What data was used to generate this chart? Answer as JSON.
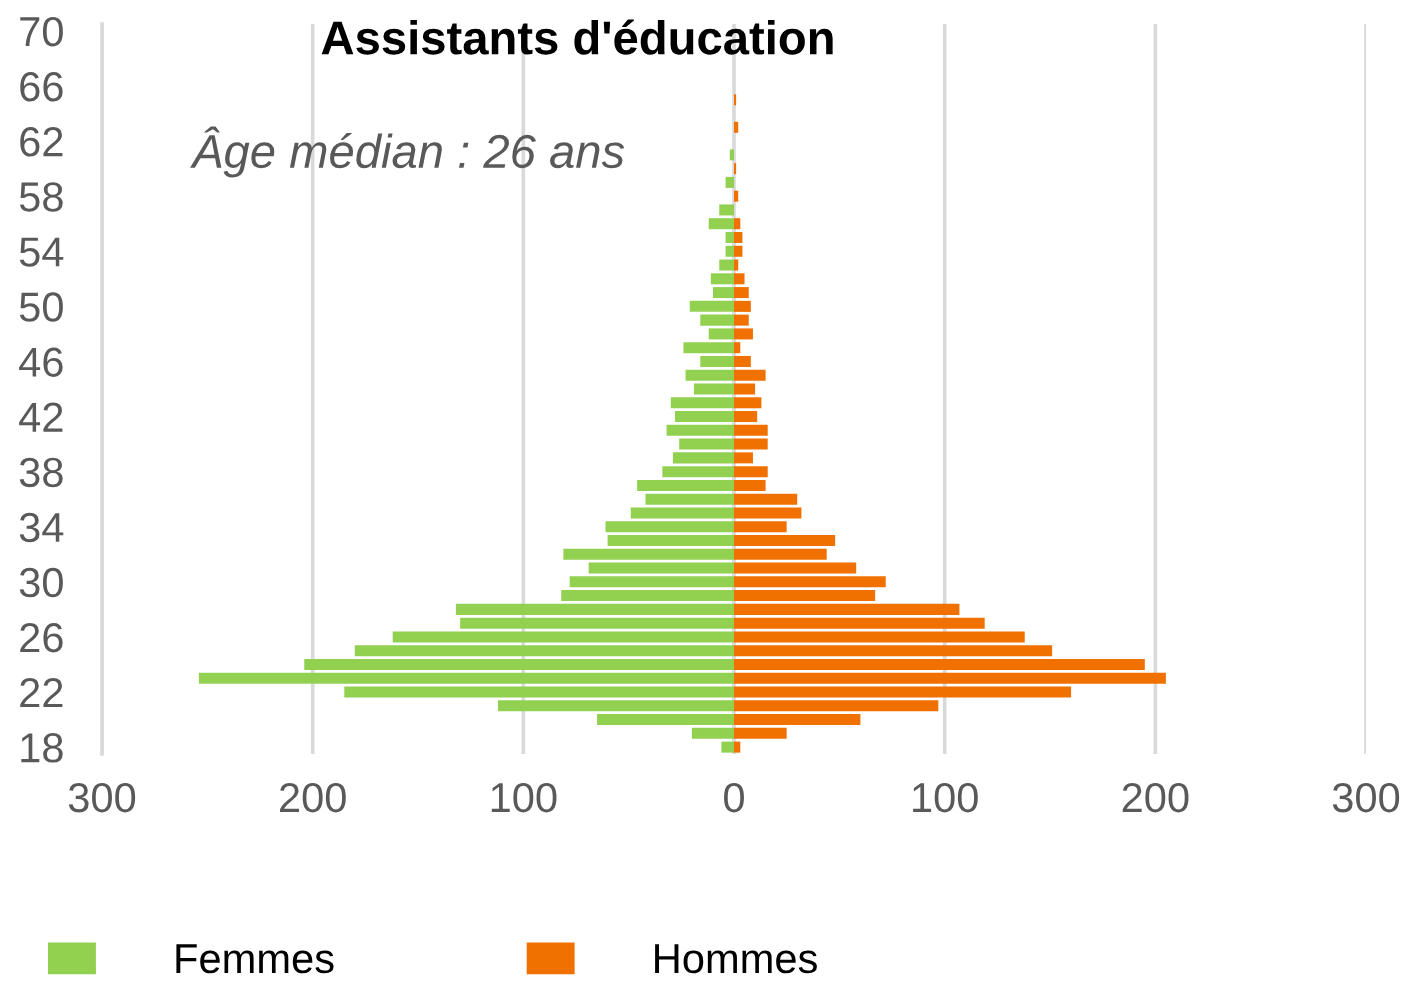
{
  "chart_data": {
    "type": "bar",
    "orientation": "horizontal",
    "stacked": true,
    "title": "Assistants d'éducation",
    "annotations": [
      "Âge médian : 26 ans"
    ],
    "categories": [
      "70",
      null,
      null,
      null,
      "66",
      null,
      null,
      null,
      "62",
      null,
      null,
      null,
      "58",
      null,
      null,
      null,
      "54",
      null,
      null,
      null,
      "50",
      null,
      null,
      null,
      "46",
      null,
      null,
      null,
      "42",
      null,
      null,
      null,
      "38",
      null,
      null,
      null,
      "34",
      null,
      null,
      null,
      "30",
      null,
      null,
      null,
      "26",
      null,
      null,
      null,
      "22",
      null,
      null,
      null,
      "18"
    ],
    "series": [
      {
        "name": "Femmes",
        "color": "#92d050",
        "values": [
          0,
          0,
          0,
          0,
          0,
          0,
          0,
          0,
          0,
          -2,
          0,
          -4,
          0,
          -7,
          -12,
          -4,
          -4,
          -7,
          -11,
          -10,
          -21,
          -16,
          -12,
          -24,
          -16,
          -23,
          -19,
          -30,
          -28,
          -32,
          -26,
          -29,
          -34,
          -46,
          -42,
          -49,
          -61,
          -60,
          -81,
          -69,
          -78,
          -82,
          -132,
          -130,
          -162,
          -180,
          -204,
          -254,
          -185,
          -112,
          -65,
          -20,
          -6
        ]
      },
      {
        "name": "Hommes",
        "color": "#f07000",
        "values": [
          0,
          0,
          0,
          0,
          0,
          1,
          0,
          2,
          0,
          0,
          1,
          0,
          2,
          0,
          3,
          4,
          4,
          2,
          5,
          7,
          8,
          7,
          9,
          3,
          8,
          15,
          10,
          13,
          11,
          16,
          16,
          9,
          16,
          15,
          30,
          32,
          25,
          48,
          44,
          58,
          72,
          67,
          107,
          119,
          138,
          151,
          195,
          205,
          160,
          97,
          60,
          25,
          3
        ]
      }
    ],
    "xlim": [
      -300,
      300
    ],
    "xticks": [
      {
        "value": -300,
        "label": "300"
      },
      {
        "value": -200,
        "label": "200"
      },
      {
        "value": -100,
        "label": "100"
      },
      0,
      100,
      200,
      300
    ],
    "grid": "x",
    "legend": "bottom"
  }
}
